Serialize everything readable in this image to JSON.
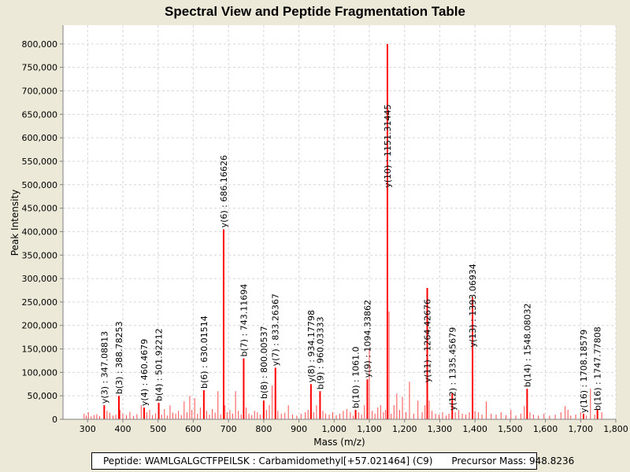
{
  "chart_data": {
    "type": "bar",
    "title": "Spectral View and Peptide Fragmentation Table",
    "xlabel": "Mass (m/z)",
    "ylabel": "Peak Intensity",
    "xlim": [
      230,
      1800
    ],
    "ylim": [
      0,
      840000
    ],
    "x_ticks": [
      300,
      400,
      500,
      600,
      700,
      800,
      900,
      1000,
      1100,
      1200,
      1300,
      1400,
      1500,
      1600,
      1700,
      1800
    ],
    "x_tick_labels": [
      "300",
      "400",
      "500",
      "600",
      "700",
      "800",
      "900",
      "1,000",
      "1,100",
      "1,200",
      "1,300",
      "1,400",
      "1,500",
      "1,600",
      "1,700",
      "1,800"
    ],
    "y_ticks": [
      0,
      50000,
      100000,
      150000,
      200000,
      250000,
      300000,
      350000,
      400000,
      450000,
      500000,
      550000,
      600000,
      650000,
      700000,
      750000,
      800000
    ],
    "y_tick_labels": [
      "0",
      "50,000",
      "100,000",
      "150,000",
      "200,000",
      "250,000",
      "300,000",
      "350,000",
      "400,000",
      "450,000",
      "500,000",
      "550,000",
      "600,000",
      "650,000",
      "700,000",
      "750,000",
      "800,000"
    ],
    "grid": true,
    "peak_color": "#ff0000",
    "series": [
      {
        "name": "peaks",
        "x": [
          290,
          296,
          302,
          310,
          318,
          326,
          334,
          347.08813,
          355,
          363,
          372,
          380,
          388.78253,
          392,
          400,
          410,
          420,
          430,
          440,
          452,
          460.4679,
          468,
          476,
          484,
          493,
          501.92212,
          510,
          518,
          526,
          534,
          542,
          550,
          558,
          566,
          574,
          582,
          590,
          596,
          604,
          612,
          620,
          630.01514,
          638,
          646,
          654,
          662,
          670,
          678,
          686.16626,
          690,
          696,
          704,
          712,
          720,
          728,
          736,
          743.11694,
          750,
          758,
          766,
          774,
          782,
          790,
          800.00537,
          808,
          816,
          824,
          833.26367,
          840,
          850,
          860,
          870,
          882,
          894,
          906,
          918,
          926,
          934.17798,
          942,
          950,
          960.03333,
          968,
          976,
          986,
          996,
          1006,
          1016,
          1026,
          1036,
          1046,
          1054,
          1061.0,
          1070,
          1078,
          1086,
          1094.33862,
          1100,
          1108,
          1116,
          1124,
          1132,
          1140,
          1146,
          1151.31445,
          1156,
          1162,
          1170,
          1178,
          1186,
          1194,
          1204,
          1214,
          1226,
          1238,
          1250,
          1258,
          1264.42676,
          1270,
          1278,
          1288,
          1298,
          1308,
          1318,
          1326,
          1335.45679,
          1344,
          1354,
          1364,
          1374,
          1384,
          1393.06934,
          1400,
          1410,
          1420,
          1432,
          1446,
          1460,
          1474,
          1488,
          1502,
          1516,
          1530,
          1540,
          1548.08032,
          1556,
          1566,
          1580,
          1596,
          1612,
          1628,
          1644,
          1656,
          1664,
          1672,
          1686,
          1700,
          1708.18579,
          1716,
          1728,
          1740,
          1747.77808,
          1760
        ],
        "y": [
          12000,
          8000,
          15000,
          6000,
          9000,
          11000,
          7000,
          30000,
          18000,
          14000,
          8000,
          10000,
          50000,
          20000,
          12000,
          9000,
          16000,
          7000,
          11000,
          30000,
          25000,
          15000,
          20000,
          9000,
          13000,
          35000,
          10000,
          22000,
          8000,
          30000,
          14000,
          12000,
          18000,
          9000,
          38000,
          15000,
          50000,
          20000,
          45000,
          12000,
          25000,
          62000,
          18000,
          10000,
          22000,
          14000,
          60000,
          10000,
          405000,
          30000,
          15000,
          20000,
          12000,
          60000,
          18000,
          10000,
          130000,
          25000,
          12000,
          9000,
          18000,
          15000,
          10000,
          40000,
          20000,
          30000,
          72000,
          110000,
          18000,
          12000,
          14000,
          30000,
          10000,
          8000,
          12000,
          15000,
          20000,
          75000,
          15000,
          30000,
          60000,
          18000,
          12000,
          10000,
          15000,
          9000,
          12000,
          18000,
          22000,
          15000,
          8000,
          20000,
          15000,
          10000,
          30000,
          85000,
          150000,
          18000,
          12000,
          25000,
          30000,
          15000,
          20000,
          800000,
          230000,
          12000,
          30000,
          55000,
          20000,
          48000,
          15000,
          80000,
          12000,
          40000,
          15000,
          30000,
          280000,
          40000,
          18000,
          12000,
          10000,
          15000,
          8000,
          12000,
          55000,
          15000,
          20000,
          12000,
          10000,
          15000,
          260000,
          18000,
          15000,
          10000,
          38000,
          12000,
          10000,
          15000,
          9000,
          20000,
          8000,
          12000,
          28000,
          65000,
          15000,
          10000,
          8000,
          12000,
          8000,
          10000,
          15000,
          28000,
          20000,
          8000,
          10000,
          15000,
          12000,
          8000,
          65000,
          10000,
          22000,
          15000
        ],
        "thick": [
          347.08813,
          388.78253,
          460.4679,
          501.92212,
          630.01514,
          686.16626,
          743.11694,
          800.00537,
          833.26367,
          934.17798,
          960.03333,
          1061.0,
          1094.33862,
          1151.31445,
          1264.42676,
          1335.45679,
          1393.06934,
          1548.08032,
          1708.18579,
          1747.77808
        ]
      }
    ],
    "annotations": [
      {
        "x": 347.08813,
        "y": 30000,
        "text": "y(3) : 347.08813"
      },
      {
        "x": 388.78253,
        "y": 50000,
        "text": "b(3) : 388.78253"
      },
      {
        "x": 460.4679,
        "y": 25000,
        "text": "y(4) : 460.4679"
      },
      {
        "x": 501.92212,
        "y": 35000,
        "text": "b(4) : 501.92212"
      },
      {
        "x": 630.01514,
        "y": 62000,
        "text": "b(6) : 630.01514"
      },
      {
        "x": 686.16626,
        "y": 405000,
        "text": "y(6) : 686.16626"
      },
      {
        "x": 743.11694,
        "y": 130000,
        "text": "b(7) : 743.11694"
      },
      {
        "x": 800.00537,
        "y": 40000,
        "text": "b(8) : 800.00537"
      },
      {
        "x": 833.26367,
        "y": 110000,
        "text": "y(7) : 833.26367"
      },
      {
        "x": 934.17798,
        "y": 75000,
        "text": "y(8) : 934.17798"
      },
      {
        "x": 960.03333,
        "y": 60000,
        "text": "b(9) : 960.03333"
      },
      {
        "x": 1061.0,
        "y": 20000,
        "text": "b(10) : 1061.0"
      },
      {
        "x": 1094.33862,
        "y": 85000,
        "text": "y(9) : 1094.33862"
      },
      {
        "x": 1151.31445,
        "y": 490000,
        "text": "y(10) : 1151.31445"
      },
      {
        "x": 1264.42676,
        "y": 75000,
        "text": "y(11) : 1264.42676"
      },
      {
        "x": 1335.45679,
        "y": 15000,
        "text": "y(12) : 1335.45679"
      },
      {
        "x": 1393.06934,
        "y": 150000,
        "text": "y(13) : 1393.06934"
      },
      {
        "x": 1548.08032,
        "y": 65000,
        "text": "b(14) : 1548.08032"
      },
      {
        "x": 1708.18579,
        "y": 10000,
        "text": "y(16) : 1708.18579"
      },
      {
        "x": 1747.77808,
        "y": 15000,
        "text": "b(16) : 1747.77808"
      }
    ]
  },
  "footer": {
    "peptide": "Peptide: WAMLGALGCTFPEILSK : Carbamidomethyl[+57.021464] (C9)",
    "precursor": "Precursor Mass: 948.8236"
  }
}
